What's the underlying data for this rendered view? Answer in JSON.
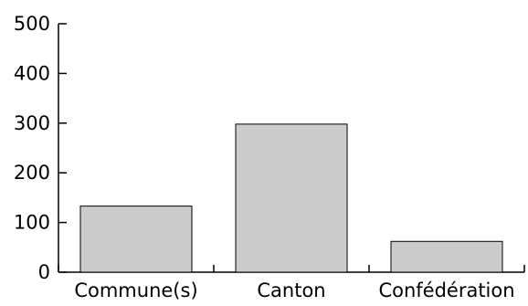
{
  "chart_data": {
    "type": "bar",
    "categories": [
      "Commune(s)",
      "Canton",
      "Confédération"
    ],
    "values": [
      133,
      298,
      62
    ],
    "ylim": [
      0,
      500
    ],
    "yticks": [
      0,
      100,
      200,
      300,
      400,
      500
    ],
    "grid": false,
    "legend": "none",
    "title": "",
    "xlabel": "",
    "ylabel": ""
  },
  "colors": {
    "bar_fill": "#cccccc",
    "bar_stroke": "#000000",
    "axis": "#000000",
    "background": "#ffffff"
  }
}
